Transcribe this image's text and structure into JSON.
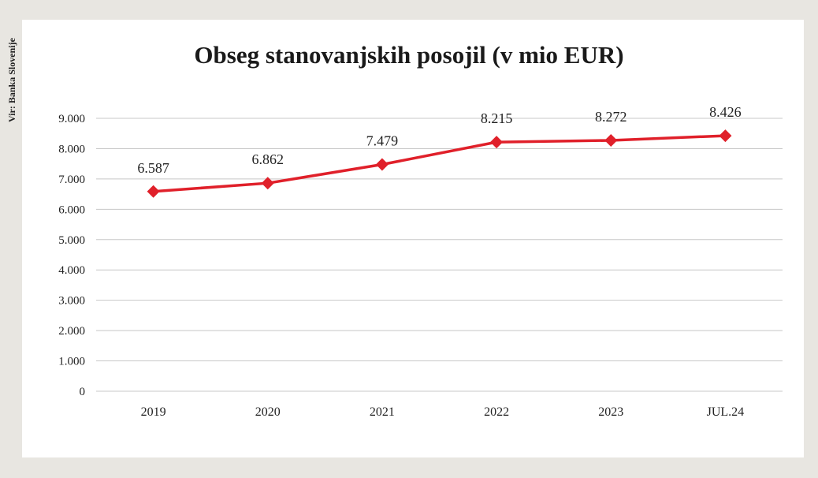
{
  "chart_data": {
    "type": "line",
    "title": "Obseg stanovanjskih posojil (v mio EUR)",
    "source": "Vir: Banka Slovenije",
    "categories": [
      "2019",
      "2020",
      "2021",
      "2022",
      "2023",
      "JUL.24"
    ],
    "values": [
      6587,
      6862,
      7479,
      8215,
      8272,
      8426
    ],
    "data_labels": [
      "6.587",
      "6.862",
      "7.479",
      "8.215",
      "8.272",
      "8.426"
    ],
    "ylim": [
      0,
      9000
    ],
    "yticks": [
      0,
      1000,
      2000,
      3000,
      4000,
      5000,
      6000,
      7000,
      8000,
      9000
    ],
    "ytick_labels": [
      "0",
      "1.000",
      "2.000",
      "3.000",
      "4.000",
      "5.000",
      "6.000",
      "7.000",
      "8.000",
      "9.000"
    ],
    "grid": true,
    "line_color": "#e0202a",
    "xlabel": "",
    "ylabel": ""
  }
}
